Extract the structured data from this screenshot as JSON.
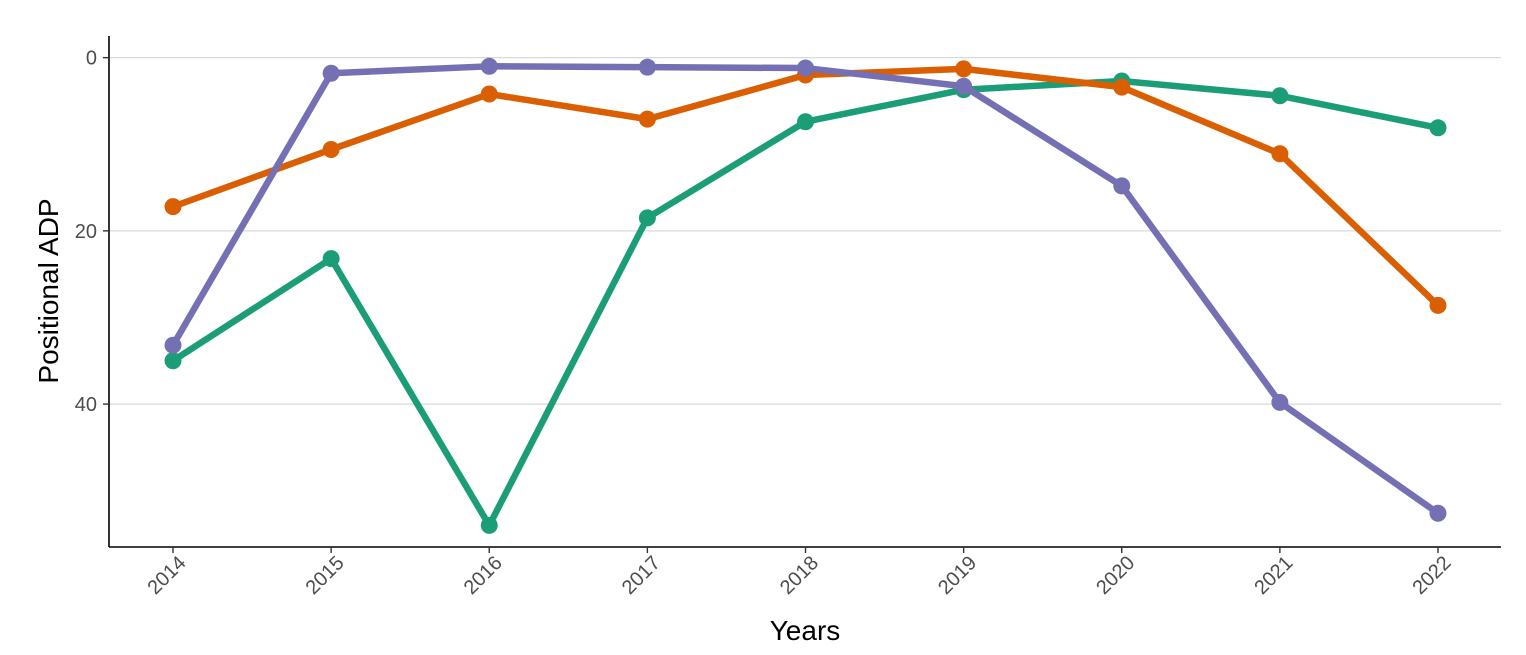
{
  "chart_data": {
    "type": "line",
    "title": "",
    "xlabel": "Years",
    "ylabel": "Positional ADP",
    "x": [
      "2014",
      "2015",
      "2016",
      "2017",
      "2018",
      "2019",
      "2020",
      "2021",
      "2022"
    ],
    "y_ticks": [
      0,
      20,
      40
    ],
    "ylim": [
      56.5,
      -2.5
    ],
    "y_reversed": true,
    "grid": "horizontal-major",
    "legend": "none",
    "series": [
      {
        "color": "#1B9E77",
        "values": [
          35,
          23.2,
          54,
          18.5,
          7.4,
          3.7,
          2.7,
          4.4,
          8.1
        ]
      },
      {
        "color": "#D95F02",
        "values": [
          17.2,
          10.6,
          4.2,
          7.1,
          2.0,
          1.3,
          3.4,
          11.1,
          28.6
        ]
      },
      {
        "color": "#7570B3",
        "values": [
          33.2,
          1.8,
          1.0,
          1.1,
          1.2,
          3.3,
          14.8,
          39.8,
          52.6
        ]
      }
    ]
  }
}
